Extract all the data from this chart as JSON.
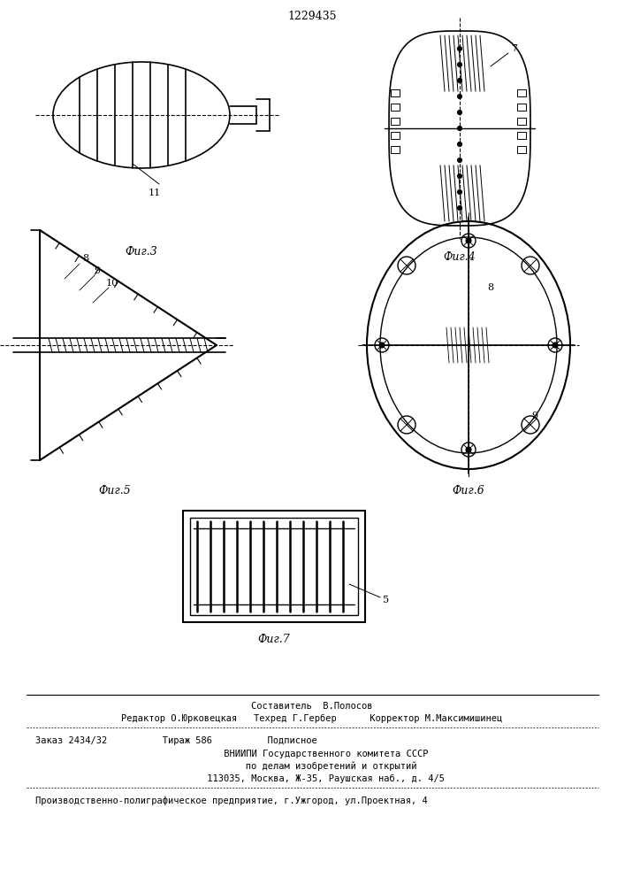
{
  "patent_number": "1229435",
  "bg_color": "#ffffff",
  "line_color": "#000000",
  "fig_labels": [
    "Фиг.3",
    "Фиг.4",
    "Фиг.5",
    "Фиг.6",
    "Фиг.7"
  ],
  "annotations": {
    "label_11": "11",
    "label_7": "7",
    "label_8_fig5": "8",
    "label_9_fig5": "9",
    "label_10": "10",
    "label_8_fig6": "8",
    "label_9_fig6": "9",
    "label_5": "5"
  },
  "footer_lines": [
    "Составитель  В.Полосов",
    "Редактор О.Юрковецкая   Техред Г.Гербер      Корректор М.Максимишинец",
    "Заказ 2434/32          Тираж 586          Подписное",
    "     ВНИИПИ Государственного комитета СССР",
    "       по делам изобретений и открытий",
    "     113035, Москва, Ж-35, Раушская наб., д. 4/5",
    "Производственно-полиграфическое предприятие, г.Ужгород, ул.Проектная, 4"
  ]
}
